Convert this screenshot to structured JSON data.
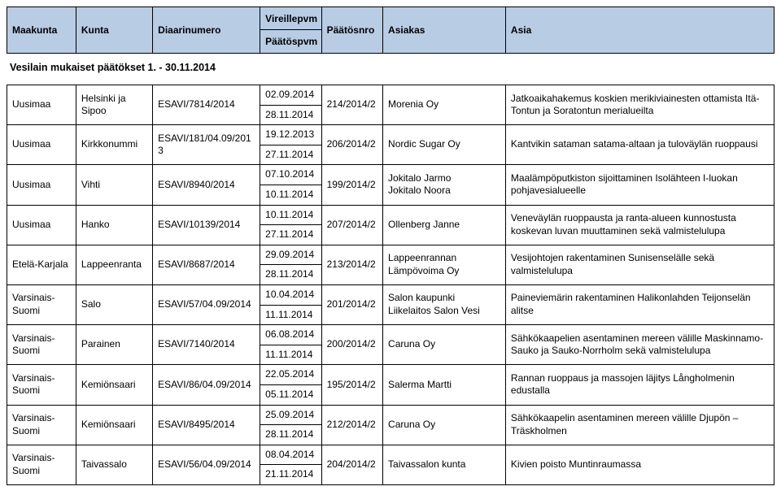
{
  "header": {
    "columns": [
      "Maakunta",
      "Kunta",
      "Diaarinumero",
      "Vireillepvm",
      "Päätöspvm",
      "Päätösnro",
      "Asiakas",
      "Asia"
    ]
  },
  "title": "Vesilain mukaiset päätökset 1. - 30.11.2014",
  "rows": [
    {
      "maakunta": "Uusimaa",
      "kunta": "Helsinki ja Sipoo",
      "diaari": "ESAVI/7814/2014",
      "vireille": "02.09.2014",
      "paatospvm": "28.11.2014",
      "paatosnro": "214/2014/2",
      "asiakas": "Morenia Oy",
      "asia": "Jatkoaikahakemus koskien merikiviainesten ottamista Itä-Tontun ja Soratontun merialueilta"
    },
    {
      "maakunta": "Uusimaa",
      "kunta": "Kirkkonummi",
      "diaari": "ESAVI/181/04.09/2013",
      "vireille": "19.12.2013",
      "paatospvm": "27.11.2014",
      "paatosnro": "206/2014/2",
      "asiakas": "Nordic Sugar Oy",
      "asia": "Kantvikin sataman satama-altaan ja tuloväylän ruoppausi"
    },
    {
      "maakunta": "Uusimaa",
      "kunta": "Vihti",
      "diaari": "ESAVI/8940/2014",
      "vireille": "07.10.2014",
      "paatospvm": "10.11.2014",
      "paatosnro": "199/2014/2",
      "asiakas": "Jokitalo Jarmo\nJokitalo Noora",
      "asia": "Maalämpöputkiston sijoittaminen Isolähteen I-luokan pohjavesialueelle"
    },
    {
      "maakunta": "Uusimaa",
      "kunta": "Hanko",
      "diaari": "ESAVI/10139/2014",
      "vireille": "10.11.2014",
      "paatospvm": "27.11.2014",
      "paatosnro": "207/2014/2",
      "asiakas": "Ollenberg Janne",
      "asia": "Veneväylän ruoppausta ja ranta-alueen kunnostusta koskevan luvan muuttaminen sekä valmistelulupa"
    },
    {
      "maakunta": "Etelä-Karjala",
      "kunta": "Lappeenranta",
      "diaari": "ESAVI/8687/2014",
      "vireille": "29.09.2014",
      "paatospvm": "28.11.2014",
      "paatosnro": "213/2014/2",
      "asiakas": "Lappeenrannan Lämpövoima Oy",
      "asia": "Vesijohtojen rakentaminen Sunisenselälle sekä valmistelulupa"
    },
    {
      "maakunta": "Varsinais-Suomi",
      "kunta": "Salo",
      "diaari": "ESAVI/57/04.09/2014",
      "vireille": "10.04.2014",
      "paatospvm": "11.11.2014",
      "paatosnro": "201/2014/2",
      "asiakas": "Salon kaupunki\nLiikelaitos Salon Vesi",
      "asia": "Paineviemärin rakentaminen Halikonlahden Teijonselän alitse"
    },
    {
      "maakunta": "Varsinais-Suomi",
      "kunta": "Parainen",
      "diaari": "ESAVI/7140/2014",
      "vireille": "06.08.2014",
      "paatospvm": "11.11.2014",
      "paatosnro": "200/2014/2",
      "asiakas": "Caruna Oy",
      "asia": "Sähkökaapelien asentaminen mereen välille Maskinnamo-Sauko ja Sauko-Norrholm sekä valmistelulupa"
    },
    {
      "maakunta": "Varsinais-Suomi",
      "kunta": "Kemiönsaari",
      "diaari": "ESAVI/86/04.09/2014",
      "vireille": "22.05.2014",
      "paatospvm": "05.11.2014",
      "paatosnro": "195/2014/2",
      "asiakas": "Salerma Martti",
      "asia": "Rannan ruoppaus ja massojen läjitys Långholmenin edustalla"
    },
    {
      "maakunta": "Varsinais-Suomi",
      "kunta": "Kemiönsaari",
      "diaari": "ESAVI/8495/2014",
      "vireille": "25.09.2014",
      "paatospvm": "28.11.2014",
      "paatosnro": "212/2014/2",
      "asiakas": "Caruna Oy",
      "asia": "Sähkökaapelin asentaminen mereen välille Djupön – Träskholmen"
    },
    {
      "maakunta": "Varsinais-Suomi",
      "kunta": "Taivassalo",
      "diaari": "ESAVI/56/04.09/2014",
      "vireille": "08.04.2014",
      "paatospvm": "21.11.2014",
      "paatosnro": "204/2014/2",
      "asiakas": "Taivassalon kunta",
      "asia": "Kivien poisto Muntinraumassa"
    }
  ],
  "style": {
    "header_bg": "#b8cce4",
    "border_color": "#000000",
    "font_size": 12
  }
}
